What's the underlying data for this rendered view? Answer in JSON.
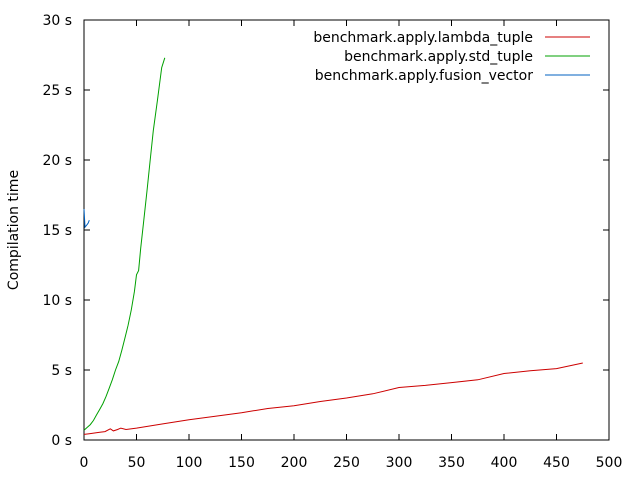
{
  "chart_data": {
    "type": "line",
    "title": "",
    "xlabel": "",
    "ylabel": "Compilation time",
    "xlim": [
      0,
      500
    ],
    "ylim": [
      0,
      30
    ],
    "x_ticks": [
      "0",
      "50",
      "100",
      "150",
      "200",
      "250",
      "300",
      "350",
      "400",
      "450",
      "500"
    ],
    "y_ticks": [
      "0 s",
      "5 s",
      "10 s",
      "15 s",
      "20 s",
      "25 s",
      "30 s"
    ],
    "grid": false,
    "legend_position": "top-right",
    "series": [
      {
        "name": "benchmark.apply.lambda_tuple",
        "color": "#cc0000",
        "points": [
          [
            0,
            0.4
          ],
          [
            5,
            0.45
          ],
          [
            10,
            0.5
          ],
          [
            15,
            0.55
          ],
          [
            20,
            0.6
          ],
          [
            25,
            0.8
          ],
          [
            28,
            0.65
          ],
          [
            32,
            0.75
          ],
          [
            35,
            0.85
          ],
          [
            40,
            0.75
          ],
          [
            50,
            0.85
          ],
          [
            75,
            1.15
          ],
          [
            100,
            1.45
          ],
          [
            125,
            1.7
          ],
          [
            150,
            1.95
          ],
          [
            175,
            2.25
          ],
          [
            200,
            2.45
          ],
          [
            225,
            2.75
          ],
          [
            250,
            3.0
          ],
          [
            275,
            3.3
          ],
          [
            300,
            3.75
          ],
          [
            325,
            3.9
          ],
          [
            350,
            4.1
          ],
          [
            375,
            4.3
          ],
          [
            400,
            4.75
          ],
          [
            425,
            4.95
          ],
          [
            450,
            5.1
          ],
          [
            475,
            5.5
          ]
        ]
      },
      {
        "name": "benchmark.apply.std_tuple",
        "color": "#00a000",
        "points": [
          [
            0,
            0.7
          ],
          [
            3,
            0.9
          ],
          [
            6,
            1.1
          ],
          [
            9,
            1.4
          ],
          [
            12,
            1.8
          ],
          [
            15,
            2.2
          ],
          [
            18,
            2.6
          ],
          [
            21,
            3.1
          ],
          [
            24,
            3.7
          ],
          [
            27,
            4.3
          ],
          [
            30,
            5.0
          ],
          [
            33,
            5.6
          ],
          [
            36,
            6.4
          ],
          [
            39,
            7.3
          ],
          [
            42,
            8.2
          ],
          [
            45,
            9.3
          ],
          [
            48,
            10.6
          ],
          [
            50,
            11.8
          ],
          [
            52,
            12.1
          ],
          [
            54,
            13.7
          ],
          [
            57,
            15.7
          ],
          [
            60,
            17.8
          ],
          [
            63,
            20.0
          ],
          [
            66,
            22.1
          ],
          [
            70,
            24.3
          ],
          [
            74,
            26.6
          ],
          [
            77,
            27.3
          ]
        ]
      },
      {
        "name": "benchmark.apply.fusion_vector",
        "color": "#0060c0",
        "points": [
          [
            0,
            16.5
          ],
          [
            1,
            15.2
          ],
          [
            2,
            15.3
          ],
          [
            3,
            15.4
          ],
          [
            4,
            15.5
          ],
          [
            5,
            15.7
          ]
        ]
      }
    ]
  }
}
